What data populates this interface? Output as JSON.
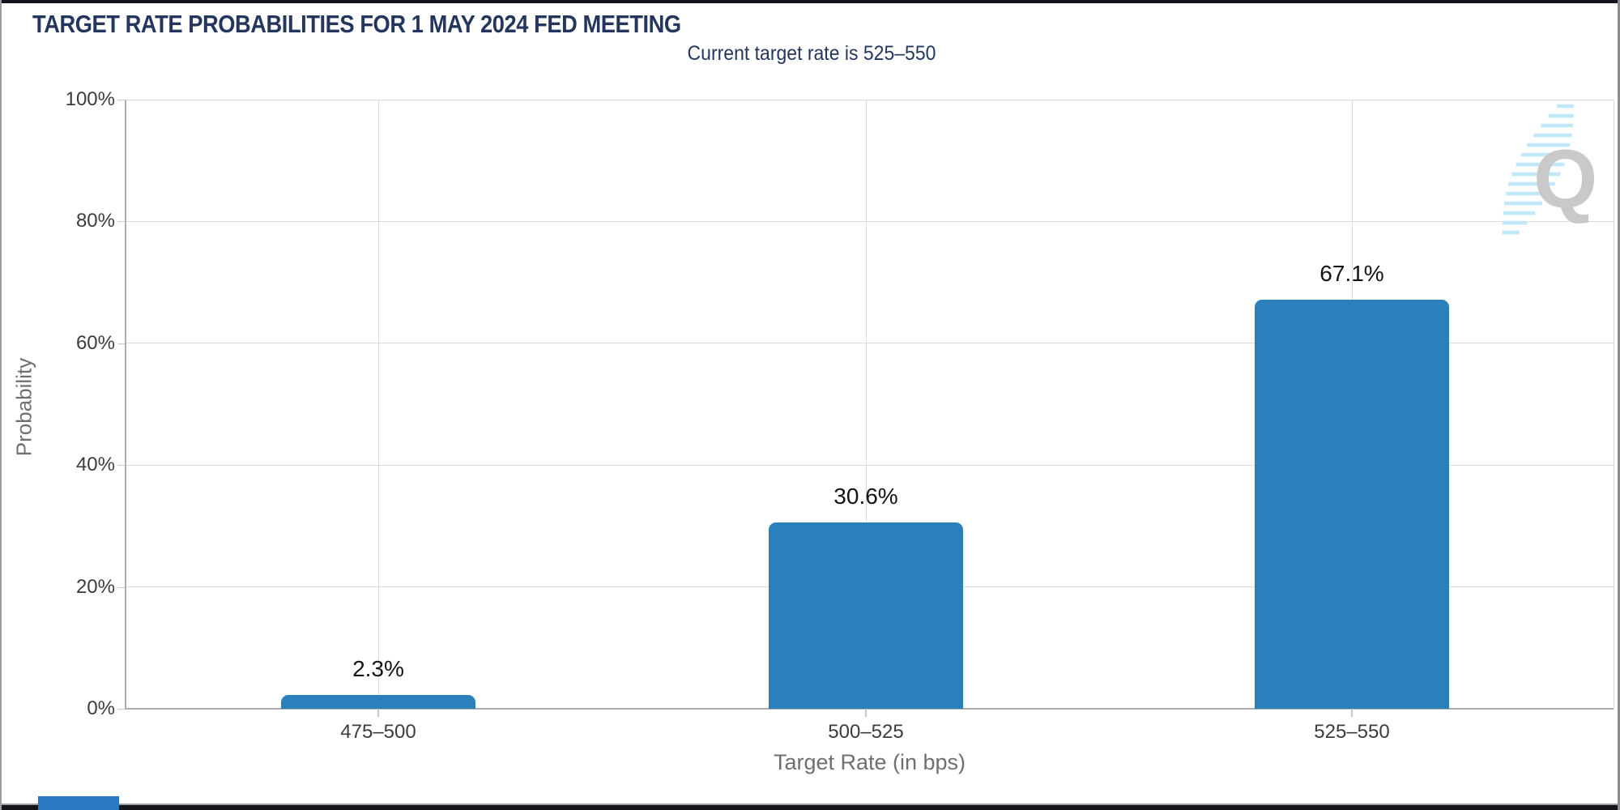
{
  "page": {
    "title": "TARGET RATE PROBABILITIES FOR 1 MAY 2024 FED MEETING",
    "subtitle": "Current target rate is 525–550"
  },
  "chart_data": {
    "type": "bar",
    "title": "TARGET RATE PROBABILITIES FOR 1 MAY 2024 FED MEETING",
    "subtitle": "Current target rate is 525–550",
    "categories": [
      "475–500",
      "500–525",
      "525–550"
    ],
    "values": [
      2.3,
      30.6,
      67.1
    ],
    "value_labels": [
      "2.3%",
      "30.6%",
      "67.1%"
    ],
    "xlabel": "Target Rate (in bps)",
    "ylabel": "Probability",
    "ylim": [
      0,
      100
    ],
    "ytick_step": 20,
    "ytick_labels": [
      "0%",
      "20%",
      "40%",
      "60%",
      "80%",
      "100%"
    ],
    "grid": true,
    "legend": "none",
    "bar_color": "#2A80BA"
  },
  "watermark": {
    "letter": "Q"
  },
  "colors": {
    "title_navy": "#25365E",
    "bar_blue": "#2A80BA",
    "gridline": "#DCDCDC",
    "axis_line": "#AEAEAE",
    "tick_text": "#3C3C3C",
    "axis_title_text": "#6F6F6F",
    "logo_gray": "#C7C7C7",
    "logo_stripe_cyan": "#BDE7F9",
    "edge_dark": "#14141D",
    "accent_blue": "#2979C0"
  }
}
